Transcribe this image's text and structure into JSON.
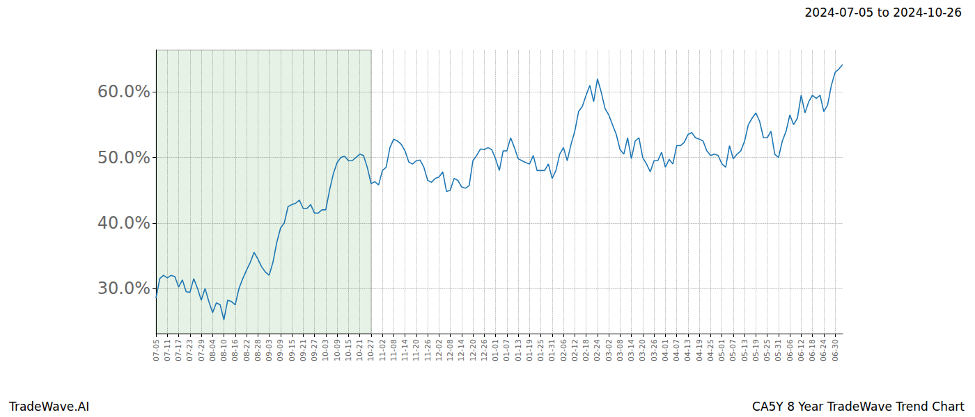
{
  "chart_data": {
    "type": "line",
    "title": "CA5Y 8 Year TradeWave Trend Chart",
    "subtitle": "2024-07-05 to 2024-10-26",
    "annotations": [
      "TradeWave.AI"
    ],
    "categories": [
      "07-05",
      null,
      null,
      "07-11",
      null,
      null,
      "07-17",
      null,
      null,
      "07-23",
      null,
      null,
      "07-29",
      null,
      null,
      "08-04",
      null,
      null,
      "08-10",
      null,
      null,
      "08-16",
      null,
      null,
      "08-22",
      null,
      null,
      "08-28",
      null,
      null,
      "09-03",
      null,
      null,
      "09-09",
      null,
      null,
      "09-15",
      null,
      null,
      "09-21",
      null,
      null,
      "09-27",
      null,
      null,
      "10-03",
      null,
      null,
      "10-09",
      null,
      null,
      "10-15",
      null,
      null,
      "10-21",
      null,
      null,
      "10-27",
      null,
      null,
      "11-02",
      null,
      null,
      "11-08",
      null,
      null,
      "11-14",
      null,
      null,
      "11-20",
      null,
      null,
      "11-26",
      null,
      null,
      "12-02",
      null,
      null,
      "12-08",
      null,
      null,
      "12-14",
      null,
      null,
      "12-20",
      null,
      null,
      "12-26",
      null,
      null,
      "01-01",
      null,
      null,
      "01-07",
      null,
      null,
      "01-13",
      null,
      null,
      "01-19",
      null,
      null,
      "01-25",
      null,
      null,
      "01-31",
      null,
      null,
      "02-06",
      null,
      null,
      "02-12",
      null,
      null,
      "02-18",
      null,
      null,
      "02-24",
      null,
      null,
      "03-02",
      null,
      null,
      "03-08",
      null,
      null,
      "03-14",
      null,
      null,
      "03-20",
      null,
      null,
      "03-26",
      null,
      null,
      "04-01",
      null,
      null,
      "04-07",
      null,
      null,
      "04-13",
      null,
      null,
      "04-19",
      null,
      null,
      "04-25",
      null,
      null,
      "05-01",
      null,
      null,
      "05-07",
      null,
      null,
      "05-13",
      null,
      null,
      "05-19",
      null,
      null,
      "05-25",
      null,
      null,
      "05-31",
      null,
      null,
      "06-06",
      null,
      null,
      "06-12",
      null,
      null,
      "06-18",
      null,
      null,
      "06-24",
      null,
      null,
      "06-30",
      null,
      null
    ],
    "values": [
      28.5,
      31.5,
      32,
      31.6,
      32,
      31.8,
      30.2,
      31.3,
      29.5,
      29.4,
      31.5,
      30,
      28.2,
      30,
      28,
      26.3,
      27.8,
      27.5,
      25.2,
      28.2,
      28,
      27.5,
      30,
      31.5,
      32.8,
      34,
      35.5,
      34.5,
      33.3,
      32.5,
      32,
      34,
      37,
      39.2,
      40,
      42.5,
      42.8,
      43,
      43.5,
      42.2,
      42.2,
      42.8,
      41.5,
      41.5,
      42,
      42,
      45,
      47.5,
      49.2,
      50,
      50.2,
      49.5,
      49.5,
      50,
      50.5,
      50.3,
      48.5,
      46,
      46.3,
      45.8,
      48,
      48.5,
      51.5,
      52.8,
      52.5,
      52,
      51,
      49.3,
      49,
      49.5,
      49.6,
      48.5,
      46.5,
      46.2,
      46.8,
      47,
      47.8,
      44.8,
      45,
      46.8,
      46.5,
      45.5,
      45.3,
      45.7,
      49.5,
      50.3,
      51.3,
      51.2,
      51.5,
      51.2,
      49.8,
      48,
      51,
      51,
      53,
      51.5,
      49.8,
      49.5,
      49.2,
      49,
      50.3,
      48,
      48,
      48,
      49,
      46.8,
      48,
      50.5,
      51.5,
      49.5,
      52,
      54,
      57,
      57.8,
      59.5,
      61,
      58.5,
      62,
      60,
      57.5,
      56.5,
      55,
      53.5,
      51.2,
      50.5,
      53,
      49.8,
      52.5,
      53,
      50,
      49,
      47.8,
      49.5,
      49.5,
      50.8,
      48.5,
      49.7,
      49,
      51.8,
      51.8,
      52.3,
      53.5,
      53.8,
      53,
      52.8,
      52.5,
      51,
      50.3,
      50.5,
      50.3,
      49,
      48.5,
      51.8,
      49.8,
      50.5,
      51,
      52.5,
      55,
      56,
      56.8,
      55.5,
      53,
      53,
      54,
      50.5,
      50,
      52.5,
      54,
      56.5,
      55,
      56,
      59.5,
      56.8,
      58.5,
      59.5,
      59,
      59.5,
      57,
      58,
      61,
      63,
      63.5,
      64.2
    ],
    "color": "#1f77b4",
    "shaded_range": {
      "start": "07-05",
      "end": "10-27"
    },
    "ylim": [
      23.1,
      66.4
    ],
    "yticks": [
      {
        "value": 30,
        "label": "30.0%"
      },
      {
        "value": 40,
        "label": "40.0%"
      },
      {
        "value": 50,
        "label": "50.0%"
      },
      {
        "value": 60,
        "label": "60.0%"
      }
    ],
    "grid": true
  }
}
